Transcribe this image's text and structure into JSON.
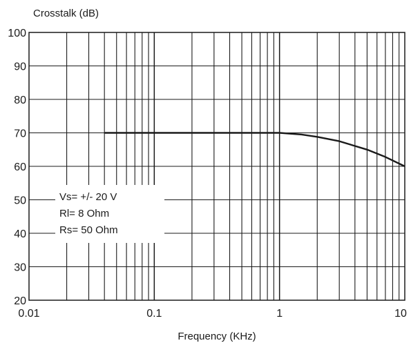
{
  "chart_data": {
    "type": "line",
    "ylabel": "Crosstalk (dB)",
    "xlabel": "Frequency (KHz)",
    "x_scale": "log",
    "xlim": [
      0.01,
      10
    ],
    "ylim": [
      20,
      100
    ],
    "grid": true,
    "x_tick_labels": [
      "0.01",
      "0.1",
      "1",
      "10"
    ],
    "x_tick_values": [
      0.01,
      0.1,
      1,
      10
    ],
    "y_tick_labels": [
      "20",
      "30",
      "40",
      "50",
      "60",
      "70",
      "80",
      "90",
      "100"
    ],
    "y_tick_values": [
      20,
      30,
      40,
      50,
      60,
      70,
      80,
      90,
      100
    ],
    "annotation": [
      "Vs= +/- 20 V",
      "Rl= 8 Ohm",
      "Rs= 50 Ohm"
    ],
    "series": [
      {
        "x": [
          0.04,
          0.1,
          0.3,
          1,
          1.5,
          2,
          3,
          5,
          7,
          10
        ],
        "y": [
          70,
          70,
          70,
          70,
          69.5,
          68.8,
          67.5,
          65.0,
          62.8,
          60
        ]
      }
    ],
    "line_color": "#1a1a1a"
  }
}
